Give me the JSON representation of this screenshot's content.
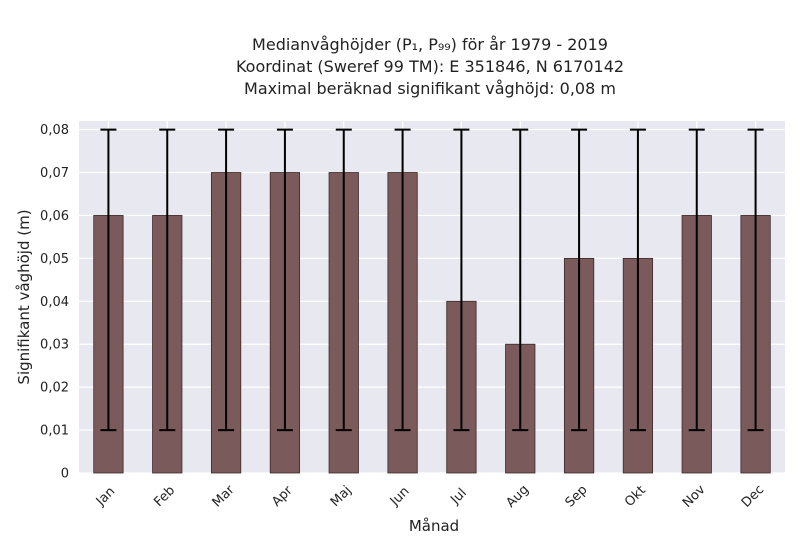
{
  "title": {
    "line1": "Medianvåghöjder (P₁, P₉₉) för år 1979 - 2019",
    "line2": "Koordinat (Sweref 99 TM): E 351846, N 6170142",
    "line3": "Maximal beräknad signifikant våghöjd: 0,08 m"
  },
  "chart_data": {
    "type": "bar",
    "categories": [
      "Jan",
      "Feb",
      "Mar",
      "Apr",
      "Maj",
      "Jun",
      "Jul",
      "Aug",
      "Sep",
      "Okt",
      "Nov",
      "Dec"
    ],
    "values": [
      0.06,
      0.06,
      0.07,
      0.07,
      0.07,
      0.07,
      0.04,
      0.03,
      0.05,
      0.05,
      0.06,
      0.06
    ],
    "error_low": [
      0.01,
      0.01,
      0.01,
      0.01,
      0.01,
      0.01,
      0.01,
      0.01,
      0.01,
      0.01,
      0.01,
      0.01
    ],
    "error_high": [
      0.08,
      0.08,
      0.08,
      0.08,
      0.08,
      0.08,
      0.08,
      0.08,
      0.08,
      0.08,
      0.08,
      0.08
    ],
    "xlabel": "Månad",
    "ylabel": "Signifikant våghöjd (m)",
    "ylim": [
      0,
      0.082
    ],
    "yticks": [
      0,
      0.01,
      0.02,
      0.03,
      0.04,
      0.05,
      0.06,
      0.07,
      0.08
    ],
    "ytick_labels": [
      "0",
      "0,01",
      "0,02",
      "0,03",
      "0,04",
      "0,05",
      "0,06",
      "0,07",
      "0,08"
    ],
    "grid": true,
    "colors": {
      "bar": "#7a5a5a",
      "bar_edge": "#3a2a2a",
      "errorbar": "#000000",
      "plot_bg": "#e8e8f0",
      "grid": "#ffffff"
    }
  }
}
